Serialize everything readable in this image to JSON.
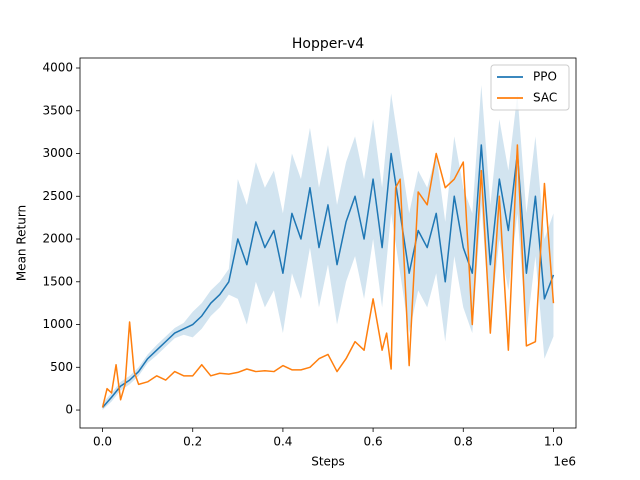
{
  "chart_data": {
    "type": "line",
    "title": "Hopper-v4",
    "x_label": "Steps",
    "y_label": "Mean Return",
    "x_offset_label": "1e6",
    "xlim": [
      -0.05,
      1.05
    ],
    "ylim": [
      -210,
      4117
    ],
    "xticks": [
      {
        "value": 0,
        "label": "0.0"
      },
      0.2,
      0.4,
      0.6,
      0.8,
      {
        "value": 1,
        "label": "1.0"
      }
    ],
    "yticks": [
      0,
      500,
      1000,
      1500,
      2000,
      2500,
      3000,
      3500,
      4000
    ],
    "legend": "upper right",
    "series": [
      {
        "name": "PPO",
        "color": "#1f77b4",
        "x": [
          0,
          0.02,
          0.04,
          0.06,
          0.08,
          0.1,
          0.12,
          0.14,
          0.16,
          0.18,
          0.2,
          0.22,
          0.24,
          0.26,
          0.28,
          0.3,
          0.32,
          0.34,
          0.36,
          0.38,
          0.4,
          0.42,
          0.44,
          0.46,
          0.48,
          0.5,
          0.52,
          0.54,
          0.56,
          0.58,
          0.6,
          0.62,
          0.64,
          0.66,
          0.68,
          0.7,
          0.72,
          0.74,
          0.76,
          0.78,
          0.8,
          0.82,
          0.84,
          0.86,
          0.88,
          0.9,
          0.92,
          0.94,
          0.96,
          0.98,
          1
        ],
        "values": [
          30,
          150,
          280,
          350,
          450,
          600,
          700,
          800,
          900,
          950,
          1000,
          1100,
          1250,
          1350,
          1500,
          2000,
          1700,
          2200,
          1900,
          2100,
          1600,
          2300,
          2000,
          2600,
          1900,
          2400,
          1700,
          2200,
          2500,
          2000,
          2700,
          1900,
          3000,
          2300,
          1600,
          2100,
          1900,
          2300,
          1500,
          2500,
          1900,
          1600,
          3100,
          1700,
          2700,
          2100,
          3000,
          1600,
          2500,
          1300,
          1580
        ],
        "upper": [
          80,
          200,
          330,
          400,
          500,
          650,
          760,
          860,
          960,
          1020,
          1150,
          1250,
          1400,
          1500,
          1650,
          2700,
          2400,
          2900,
          2600,
          2800,
          2300,
          3000,
          2700,
          3300,
          2600,
          3100,
          2400,
          2900,
          3200,
          2700,
          3400,
          2600,
          3700,
          3000,
          2300,
          2800,
          2600,
          3000,
          2200,
          3200,
          2600,
          2300,
          3800,
          2400,
          3400,
          2800,
          3700,
          2300,
          3200,
          2000,
          2300
        ],
        "lower": [
          0,
          100,
          230,
          300,
          400,
          550,
          640,
          740,
          840,
          880,
          850,
          950,
          1100,
          1200,
          1350,
          1300,
          1000,
          1500,
          1200,
          1400,
          900,
          1600,
          1300,
          1900,
          1200,
          1700,
          1000,
          1500,
          1800,
          1300,
          2000,
          1200,
          2300,
          1600,
          900,
          1400,
          1200,
          1600,
          800,
          1800,
          1200,
          900,
          2400,
          1000,
          2000,
          1400,
          2300,
          900,
          1800,
          600,
          860
        ]
      },
      {
        "name": "SAC",
        "color": "#ff7f0e",
        "x": [
          0,
          0.01,
          0.02,
          0.03,
          0.04,
          0.05,
          0.06,
          0.07,
          0.08,
          0.1,
          0.12,
          0.14,
          0.16,
          0.18,
          0.2,
          0.22,
          0.24,
          0.26,
          0.28,
          0.3,
          0.32,
          0.34,
          0.36,
          0.38,
          0.4,
          0.42,
          0.44,
          0.46,
          0.48,
          0.5,
          0.52,
          0.54,
          0.56,
          0.58,
          0.6,
          0.62,
          0.63,
          0.64,
          0.65,
          0.66,
          0.68,
          0.7,
          0.72,
          0.74,
          0.76,
          0.78,
          0.8,
          0.82,
          0.84,
          0.86,
          0.88,
          0.9,
          0.92,
          0.94,
          0.96,
          0.98,
          1
        ],
        "values": [
          30,
          250,
          200,
          530,
          120,
          300,
          1030,
          450,
          300,
          330,
          400,
          350,
          450,
          400,
          400,
          530,
          400,
          430,
          420,
          440,
          480,
          450,
          460,
          450,
          520,
          470,
          470,
          500,
          600,
          650,
          450,
          600,
          800,
          700,
          1300,
          700,
          900,
          480,
          2600,
          2700,
          520,
          2550,
          2400,
          3000,
          2600,
          2700,
          2900,
          1000,
          2800,
          900,
          2500,
          700,
          3100,
          750,
          800,
          2650,
          1250
        ]
      }
    ]
  }
}
